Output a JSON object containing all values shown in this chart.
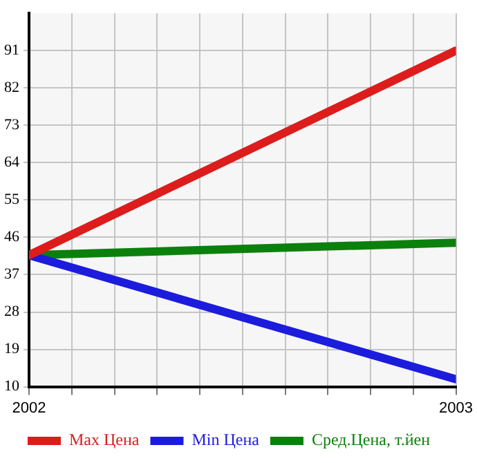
{
  "chart_data": {
    "type": "line",
    "x": [
      2002,
      2003
    ],
    "series": [
      {
        "name": "Max Цена",
        "color": "#dd1c1c",
        "values": [
          41.7,
          91
        ]
      },
      {
        "name": "Min Цена",
        "color": "#1c1cdd",
        "values": [
          41.7,
          11.8
        ]
      },
      {
        "name": "Сред.Цена, т.йен",
        "color": "#0c800c",
        "values": [
          41.7,
          44.7
        ]
      }
    ],
    "xlim": [
      2002,
      2003
    ],
    "xticks": [
      2002,
      {
        "value": 2002.1,
        "label": null
      },
      {
        "value": 2002.2,
        "label": null
      },
      {
        "value": 2002.3,
        "label": null
      },
      {
        "value": 2002.4,
        "label": null
      },
      {
        "value": 2002.5,
        "label": null
      },
      {
        "value": 2002.6,
        "label": null
      },
      {
        "value": 2002.7,
        "label": null
      },
      {
        "value": 2002.8,
        "label": null
      },
      {
        "value": 2002.9,
        "label": null
      },
      2003
    ],
    "ylim": [
      10,
      100
    ],
    "yticks": [
      10,
      19,
      28,
      37,
      46,
      55,
      64,
      73,
      82,
      91
    ],
    "grid": true,
    "legend": "bottom",
    "marker": "none",
    "line_style": "solid"
  }
}
